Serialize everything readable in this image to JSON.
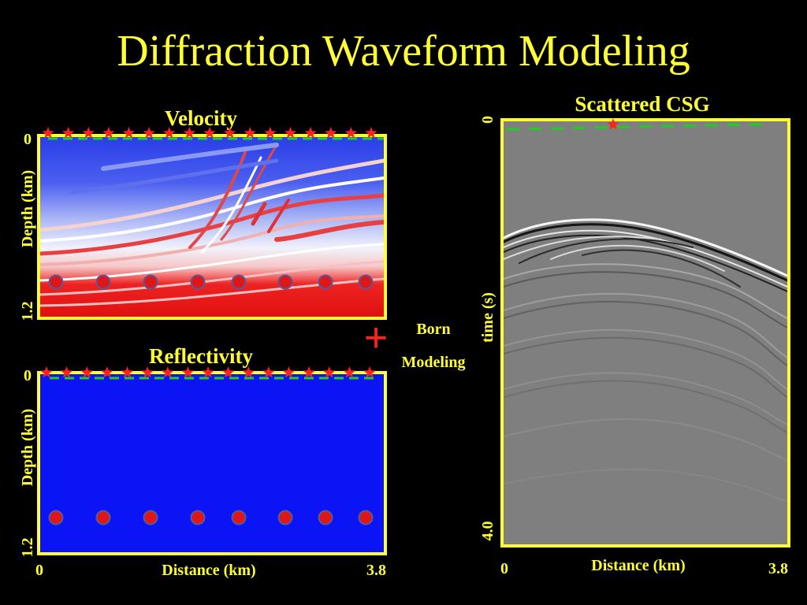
{
  "title": "Diffraction Waveform Modeling",
  "velocity_panel": {
    "title": "Velocity",
    "ylabel": "Depth (km)",
    "y_top": "0",
    "y_bottom": "1.2"
  },
  "reflectivity_panel": {
    "title": "Reflectivity",
    "ylabel": "Depth (km)",
    "y_top": "0",
    "y_bottom": "1.2",
    "xlabel": "Distance (km)",
    "x_left": "0",
    "x_right": "3.8"
  },
  "operator": {
    "symbol": "+",
    "label_line1": "Born",
    "label_line2": "Modeling"
  },
  "csg_panel": {
    "title": "Scattered CSG",
    "ylabel": "time (s)",
    "y_top": "0",
    "y_bottom": "4.0",
    "xlabel": "Distance (km)",
    "x_left": "0",
    "x_right": "3.8"
  },
  "colors": {
    "text": "#ffff33",
    "frame": "#ffff33",
    "source_star": "#ff2020",
    "receiver_dash": "#22cc22",
    "scatter_point": "#e01515",
    "reflectivity_fill": "#0a14f5",
    "csg_background": "#7f7f7f"
  },
  "markers": {
    "source_count": 17,
    "scatter_point_count": 8,
    "csg_source_count": 1
  }
}
